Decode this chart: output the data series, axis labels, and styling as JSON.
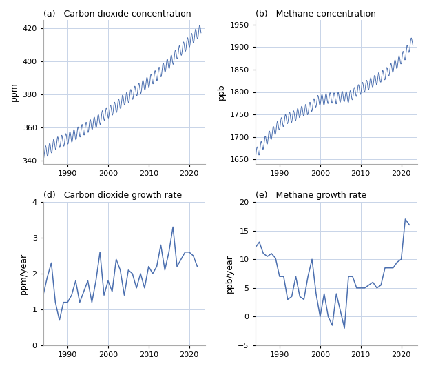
{
  "co2_years": [
    1984,
    1985,
    1986,
    1987,
    1988,
    1989,
    1990,
    1991,
    1992,
    1993,
    1994,
    1995,
    1996,
    1997,
    1998,
    1999,
    2000,
    2001,
    2002,
    2003,
    2004,
    2005,
    2006,
    2007,
    2008,
    2009,
    2010,
    2011,
    2012,
    2013,
    2014,
    2015,
    2016,
    2017,
    2018,
    2019,
    2020,
    2021,
    2022
  ],
  "co2_growth": [
    1.4,
    1.9,
    2.3,
    1.2,
    0.7,
    1.2,
    1.2,
    1.4,
    1.8,
    1.2,
    1.5,
    1.8,
    1.2,
    1.8,
    2.6,
    1.4,
    1.8,
    1.5,
    2.4,
    2.1,
    1.4,
    2.1,
    2.0,
    1.6,
    2.0,
    1.6,
    2.2,
    2.0,
    2.2,
    2.8,
    2.1,
    2.6,
    3.3,
    2.2,
    2.4,
    2.6,
    2.6,
    2.5,
    2.2
  ],
  "ch4_years": [
    1984,
    1985,
    1986,
    1987,
    1988,
    1989,
    1990,
    1991,
    1992,
    1993,
    1994,
    1995,
    1996,
    1997,
    1998,
    1999,
    2000,
    2001,
    2002,
    2003,
    2004,
    2005,
    2006,
    2007,
    2008,
    2009,
    2010,
    2011,
    2012,
    2013,
    2014,
    2015,
    2016,
    2017,
    2018,
    2019,
    2020,
    2021,
    2022
  ],
  "ch4_growth": [
    12.0,
    13.0,
    11.0,
    10.5,
    11.0,
    10.2,
    7.0,
    7.0,
    3.0,
    3.5,
    7.0,
    3.5,
    3.0,
    7.0,
    10.0,
    4.0,
    0.0,
    4.0,
    0.0,
    -1.5,
    4.0,
    1.0,
    -2.0,
    7.0,
    7.0,
    5.0,
    5.0,
    5.0,
    5.5,
    6.0,
    5.0,
    5.5,
    8.5,
    8.5,
    8.5,
    9.5,
    10.0,
    17.0,
    16.0
  ],
  "line_color": "#4b6faf",
  "grid_color": "#c8d4e8",
  "background_color": "#ffffff",
  "subplot_titles": [
    "(a)   Carbon dioxide concentration",
    "(b)   Methane concentration",
    "(d)   Carbon dioxide growth rate",
    "(e)   Methane growth rate"
  ],
  "ylabels": [
    "ppm",
    "ppb",
    "ppm/year",
    "ppb/year"
  ],
  "co2_ylim": [
    338,
    425
  ],
  "ch4_ylim": [
    1640,
    1960
  ],
  "co2_growth_ylim": [
    0,
    4
  ],
  "ch4_growth_ylim": [
    -5,
    20
  ],
  "co2_yticks": [
    340,
    360,
    380,
    400,
    420
  ],
  "ch4_yticks": [
    1650,
    1700,
    1750,
    1800,
    1850,
    1900,
    1950
  ],
  "co2_growth_yticks": [
    0,
    1,
    2,
    3,
    4
  ],
  "ch4_growth_yticks": [
    -5,
    0,
    5,
    10,
    15,
    20
  ],
  "xlim": [
    1984,
    2024
  ],
  "xticks": [
    1990,
    2000,
    2010,
    2020
  ]
}
